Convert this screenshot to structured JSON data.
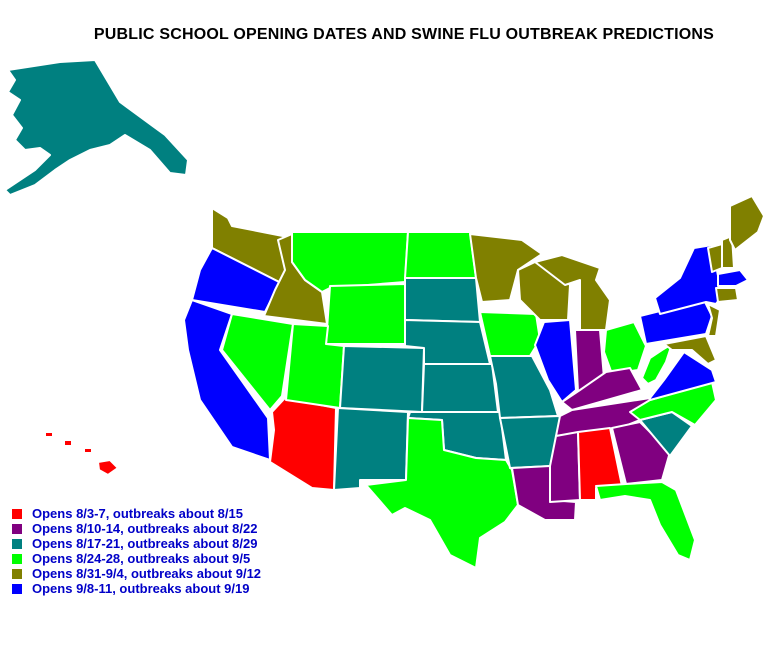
{
  "title": "PUBLIC SCHOOL OPENING DATES AND SWINE FLU OUTBREAK PREDICTIONS",
  "colors": {
    "red": "#ff0000",
    "purple": "#800080",
    "teal": "#008080",
    "green": "#00ff00",
    "olive": "#808000",
    "blue": "#0000ff"
  },
  "legend": [
    {
      "color_key": "red",
      "label": "Opens 8/3-7, outbreaks about 8/15"
    },
    {
      "color_key": "purple",
      "label": "Opens 8/10-14, outbreaks about 8/22"
    },
    {
      "color_key": "teal",
      "label": "Opens 8/17-21, outbreaks about 8/29"
    },
    {
      "color_key": "green",
      "label": "Opens 8/24-28, outbreaks about 9/5"
    },
    {
      "color_key": "olive",
      "label": "Opens 8/31-9/4, outbreaks about 9/12"
    },
    {
      "color_key": "blue",
      "label": "Opens 9/8-11, outbreaks about 9/19"
    }
  ],
  "states": {
    "WA": "olive",
    "OR": "blue",
    "CA": "blue",
    "ID": "olive",
    "NV": "green",
    "AZ": "red",
    "MT": "green",
    "WY": "green",
    "UT": "green",
    "CO": "teal",
    "NM": "teal",
    "ND": "green",
    "SD": "teal",
    "NE": "teal",
    "KS": "teal",
    "OK": "teal",
    "TX": "green",
    "MN": "olive",
    "IA": "green",
    "MO": "teal",
    "AR": "teal",
    "LA": "purple",
    "WI": "olive",
    "IL": "blue",
    "MI": "olive",
    "IN": "purple",
    "OH": "green",
    "KY": "purple",
    "TN": "purple",
    "MS": "purple",
    "AL": "red",
    "GA": "purple",
    "FL": "green",
    "SC": "teal",
    "NC": "green",
    "VA": "blue",
    "WV": "green",
    "PA": "blue",
    "NY": "blue",
    "MD": "olive",
    "DE": "olive",
    "NJ": "olive",
    "CT": "olive",
    "RI": "olive",
    "MA": "blue",
    "VT": "olive",
    "NH": "olive",
    "ME": "olive",
    "AK": "teal",
    "HI": "red"
  }
}
